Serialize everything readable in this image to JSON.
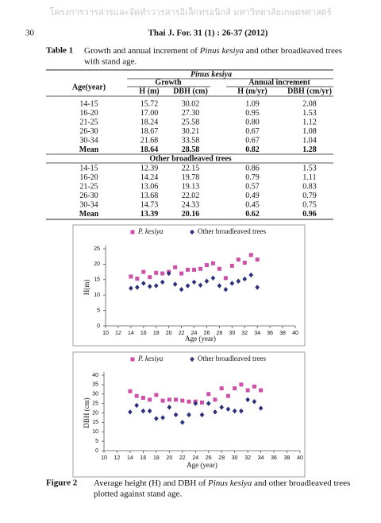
{
  "header": {
    "watermark": "โครงการวารสารและจัดทำวารสารอิเล็กทรอนิกส์ มหาวิทยาลัยเกษตรศาสตร์",
    "page_number": "30",
    "journal": "Thai J. For. 31 (1) : 26-37 (2012)"
  },
  "table": {
    "label": "Table 1",
    "caption": [
      "Growth and annual increment of ",
      "Pinus kesiya",
      " and other broadleaved trees",
      "with stand age."
    ],
    "age_header": "Age(year)",
    "growth_header": "Growth",
    "increment_header": "Annual increment",
    "columns": [
      "H (m)",
      "DBH (cm)",
      "H (m/yr)",
      "DBH (cm/yr)"
    ],
    "sections": [
      {
        "title": "Pinus kesiya",
        "rows": [
          [
            "14-15",
            "15.72",
            "30.02",
            "1.09",
            "2.08"
          ],
          [
            "16-20",
            "17.00",
            "27.30",
            "0.95",
            "1.53"
          ],
          [
            "21-25",
            "18.24",
            "25.58",
            "0.80",
            "1.12"
          ],
          [
            "26-30",
            "18.67",
            "30.21",
            "0.67",
            "1.08"
          ],
          [
            "30-34",
            "21.68",
            "33.58",
            "0.67",
            "1.04"
          ],
          [
            "Mean",
            "18.64",
            "28.58",
            "0.82",
            "1.28"
          ]
        ]
      },
      {
        "title": "Other broadleaved trees",
        "rows": [
          [
            "14-15",
            "12.39",
            "22.15",
            "0.86",
            "1.53"
          ],
          [
            "16-20",
            "14.24",
            "19.78",
            "0.79",
            "1.11"
          ],
          [
            "21-25",
            "13.06",
            "19.13",
            "0.57",
            "0.83"
          ],
          [
            "26-30",
            "13.68",
            "22.02",
            "0.49",
            "0.79"
          ],
          [
            "30-34",
            "14.73",
            "24.33",
            "0.45",
            "0.75"
          ],
          [
            "Mean",
            "13.39",
            "20.16",
            "0.62",
            "0.96"
          ]
        ]
      }
    ]
  },
  "chart_data": [
    {
      "type": "scatter",
      "xlabel": "Age (year)",
      "ylabel": "H(m)",
      "xlim": [
        10,
        40
      ],
      "xticks": [
        10,
        12,
        14,
        16,
        18,
        20,
        22,
        24,
        26,
        28,
        30,
        32,
        34,
        36,
        38,
        40
      ],
      "ylim": [
        0,
        25
      ],
      "yticks": [
        0,
        5,
        10,
        15,
        20,
        25
      ],
      "series": [
        {
          "name": "P. kesiya",
          "color": "#cc4fa8",
          "marker": "square",
          "x": [
            14,
            15,
            16,
            17,
            18,
            19,
            20,
            21,
            22,
            23,
            24,
            25,
            26,
            27,
            28,
            29,
            30,
            31,
            32,
            33,
            34
          ],
          "values": [
            16.0,
            15.3,
            17.5,
            15.8,
            17.2,
            17.0,
            17.5,
            19.0,
            17.0,
            18.2,
            18.2,
            18.5,
            19.7,
            20.3,
            18.5,
            15.5,
            19.5,
            21.5,
            20.5,
            23.0,
            21.5
          ]
        },
        {
          "name": "Other broadleaved trees",
          "color": "#2a2f7a",
          "marker": "diamond",
          "x": [
            14,
            15,
            16,
            17,
            18,
            19,
            20,
            21,
            22,
            23,
            24,
            25,
            26,
            27,
            28,
            29,
            30,
            31,
            32,
            33,
            34
          ],
          "values": [
            12.2,
            12.5,
            13.8,
            12.8,
            13.0,
            14.2,
            17.0,
            13.5,
            11.8,
            13.0,
            14.2,
            13.2,
            14.5,
            15.5,
            13.0,
            11.8,
            13.8,
            14.5,
            15.2,
            16.5,
            12.5
          ]
        }
      ]
    },
    {
      "type": "scatter",
      "xlabel": "Age (year)",
      "ylabel": "DBH (cm)",
      "xlim": [
        10,
        40
      ],
      "xticks": [
        10,
        12,
        14,
        16,
        18,
        20,
        22,
        24,
        26,
        28,
        30,
        32,
        34,
        36,
        38,
        40
      ],
      "ylim": [
        0,
        40
      ],
      "yticks": [
        0,
        5,
        10,
        15,
        20,
        25,
        30,
        35,
        40
      ],
      "series": [
        {
          "name": "P. kesiya",
          "color": "#cc4fa8",
          "marker": "square",
          "x": [
            14,
            15,
            16,
            17,
            18,
            19,
            20,
            21,
            22,
            23,
            24,
            25,
            26,
            27,
            28,
            29,
            30,
            31,
            32,
            33,
            34
          ],
          "values": [
            31.5,
            29,
            28,
            27,
            29.5,
            26.5,
            27,
            27,
            26.5,
            26,
            26,
            25.5,
            30,
            27,
            33,
            29,
            33,
            35,
            32,
            34,
            32
          ]
        },
        {
          "name": "Other broadleaved trees",
          "color": "#2a2f7a",
          "marker": "diamond",
          "x": [
            14,
            15,
            16,
            17,
            18,
            19,
            20,
            21,
            22,
            23,
            24,
            25,
            26,
            27,
            28,
            29,
            30,
            31,
            32,
            33,
            34
          ],
          "values": [
            20.5,
            24,
            21,
            21,
            17,
            17.5,
            23,
            19,
            15,
            19,
            25,
            19,
            25,
            20.5,
            23,
            22,
            21,
            21,
            27,
            26,
            22.5
          ]
        }
      ]
    }
  ],
  "figure": {
    "label": "Figure 2",
    "caption": [
      "Average height (H) and DBH of ",
      "Pinus kesiya",
      " and other broadleaved trees",
      "plotted against stand age."
    ]
  }
}
